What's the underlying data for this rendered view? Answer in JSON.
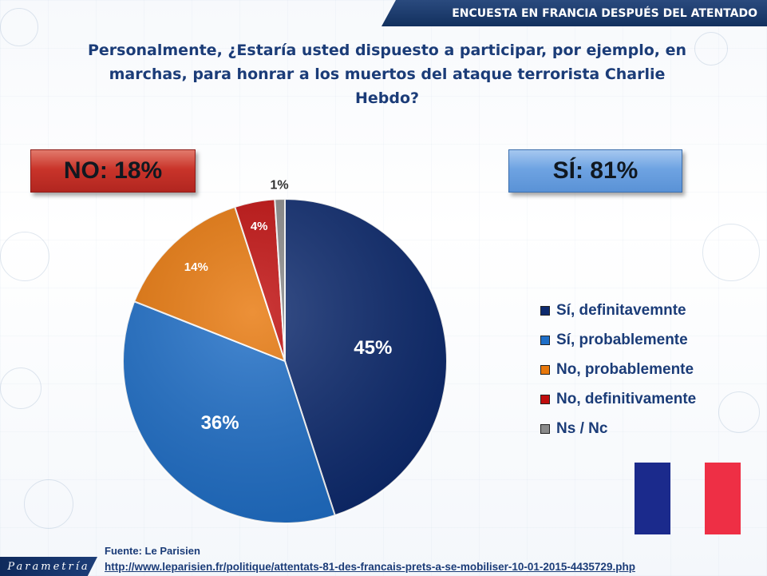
{
  "header": {
    "title": "ENCUESTA EN FRANCIA DESPUÉS DEL ATENTADO"
  },
  "question": {
    "line1": "Personalmente, ¿Estaría usted dispuesto a participar, por ejemplo,  en",
    "line2": "marchas, para honrar a los muertos del ataque terrorista Charlie Hebdo?"
  },
  "summary": {
    "no": "NO: 18%",
    "si": "SÍ: 81%"
  },
  "chart_data": {
    "type": "pie",
    "slices": [
      {
        "label": "Sí, definitavemnte",
        "value": 45,
        "display": "45%",
        "color": "#0d2a6e"
      },
      {
        "label": "Sí, probablemente",
        "value": 36,
        "display": "36%",
        "color": "#1f6fc8"
      },
      {
        "label": "No, probablemente",
        "value": 14,
        "display": "14%",
        "color": "#e8780c"
      },
      {
        "label": "No, definitivamente",
        "value": 4,
        "display": "4%",
        "color": "#c00d0d"
      },
      {
        "label": "Ns / Nc",
        "value": 1,
        "display": "1%",
        "color": "#8a8a8a"
      }
    ],
    "legend_position": "right"
  },
  "flag_colors": {
    "blue": "#1b2a8c",
    "white": "#ffffff",
    "red": "#ee2f45"
  },
  "footer": {
    "source": "Fuente: Le Parisien",
    "url": "http://www.leparisien.fr/politique/attentats-81-des-francais-prets-a-se-mobiliser-10-01-2015-4435729.php",
    "logo": "Parametría"
  }
}
